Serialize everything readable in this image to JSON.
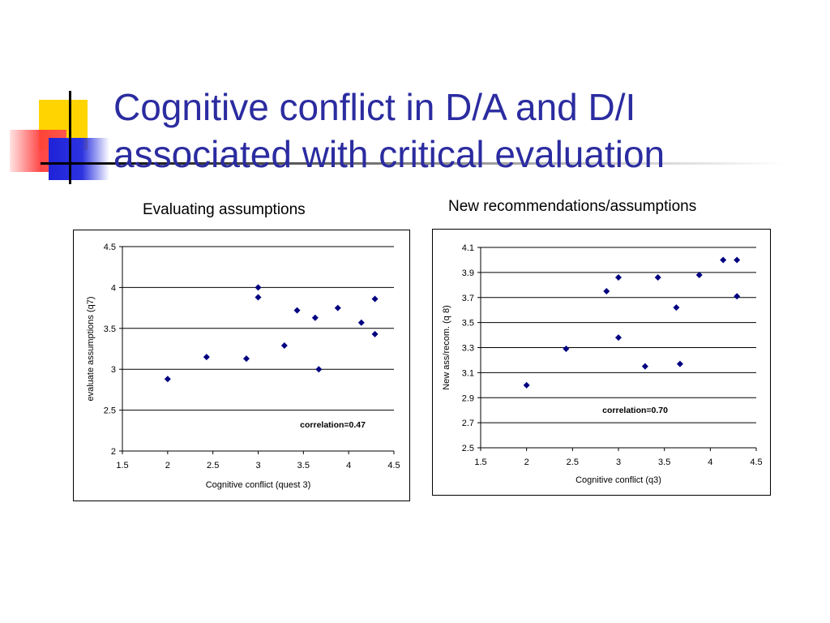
{
  "slide": {
    "title": "Cognitive conflict in D/A and D/I associated with critical evaluation",
    "colors": {
      "title": "#2b2ca0",
      "marker": "#000080",
      "accent_yellow": "#ffd400",
      "accent_blue": "#1f22d8",
      "accent_red": "#ff3c3c"
    }
  },
  "chart_data": [
    {
      "type": "scatter",
      "heading": "Evaluating assumptions",
      "xlabel": "Cognitive conflict (quest 3)",
      "ylabel": "evaluate assumptions (q7)",
      "xlim": [
        1.5,
        4.5
      ],
      "ylim": [
        2,
        4.5
      ],
      "xticks": [
        "1.5",
        "2",
        "2.5",
        "3",
        "3.5",
        "4",
        "4.5"
      ],
      "yticks": [
        "2",
        "2.5",
        "3",
        "3.5",
        "4",
        "4.5"
      ],
      "grid": "horizontal",
      "annotation": "correlation=0.47",
      "points": [
        [
          2.0,
          2.88
        ],
        [
          2.43,
          3.15
        ],
        [
          2.87,
          3.13
        ],
        [
          3.0,
          4.0
        ],
        [
          3.0,
          3.88
        ],
        [
          3.29,
          3.29
        ],
        [
          3.43,
          3.72
        ],
        [
          3.63,
          3.63
        ],
        [
          3.67,
          3.0
        ],
        [
          3.88,
          3.75
        ],
        [
          4.14,
          3.57
        ],
        [
          4.29,
          3.86
        ],
        [
          4.29,
          3.43
        ]
      ]
    },
    {
      "type": "scatter",
      "heading": "New recommendations/assumptions",
      "xlabel": "Cognitive conflict (q3)",
      "ylabel": "New ass/recom. (q 8)",
      "xlim": [
        1.5,
        4.5
      ],
      "ylim": [
        2.5,
        4.1
      ],
      "xticks": [
        "1.5",
        "2",
        "2.5",
        "3",
        "3.5",
        "4",
        "4.5"
      ],
      "yticks": [
        "2.5",
        "2.7",
        "2.9",
        "3.1",
        "3.3",
        "3.5",
        "3.7",
        "3.9",
        "4.1"
      ],
      "grid": "horizontal",
      "annotation": "correlation=0.70",
      "points": [
        [
          2.0,
          3.0
        ],
        [
          2.43,
          3.29
        ],
        [
          2.87,
          3.75
        ],
        [
          3.0,
          3.86
        ],
        [
          3.0,
          3.38
        ],
        [
          3.29,
          3.15
        ],
        [
          3.43,
          3.86
        ],
        [
          3.63,
          3.62
        ],
        [
          3.67,
          3.17
        ],
        [
          3.88,
          3.88
        ],
        [
          4.14,
          4.0
        ],
        [
          4.29,
          4.0
        ],
        [
          4.29,
          3.71
        ]
      ]
    }
  ]
}
